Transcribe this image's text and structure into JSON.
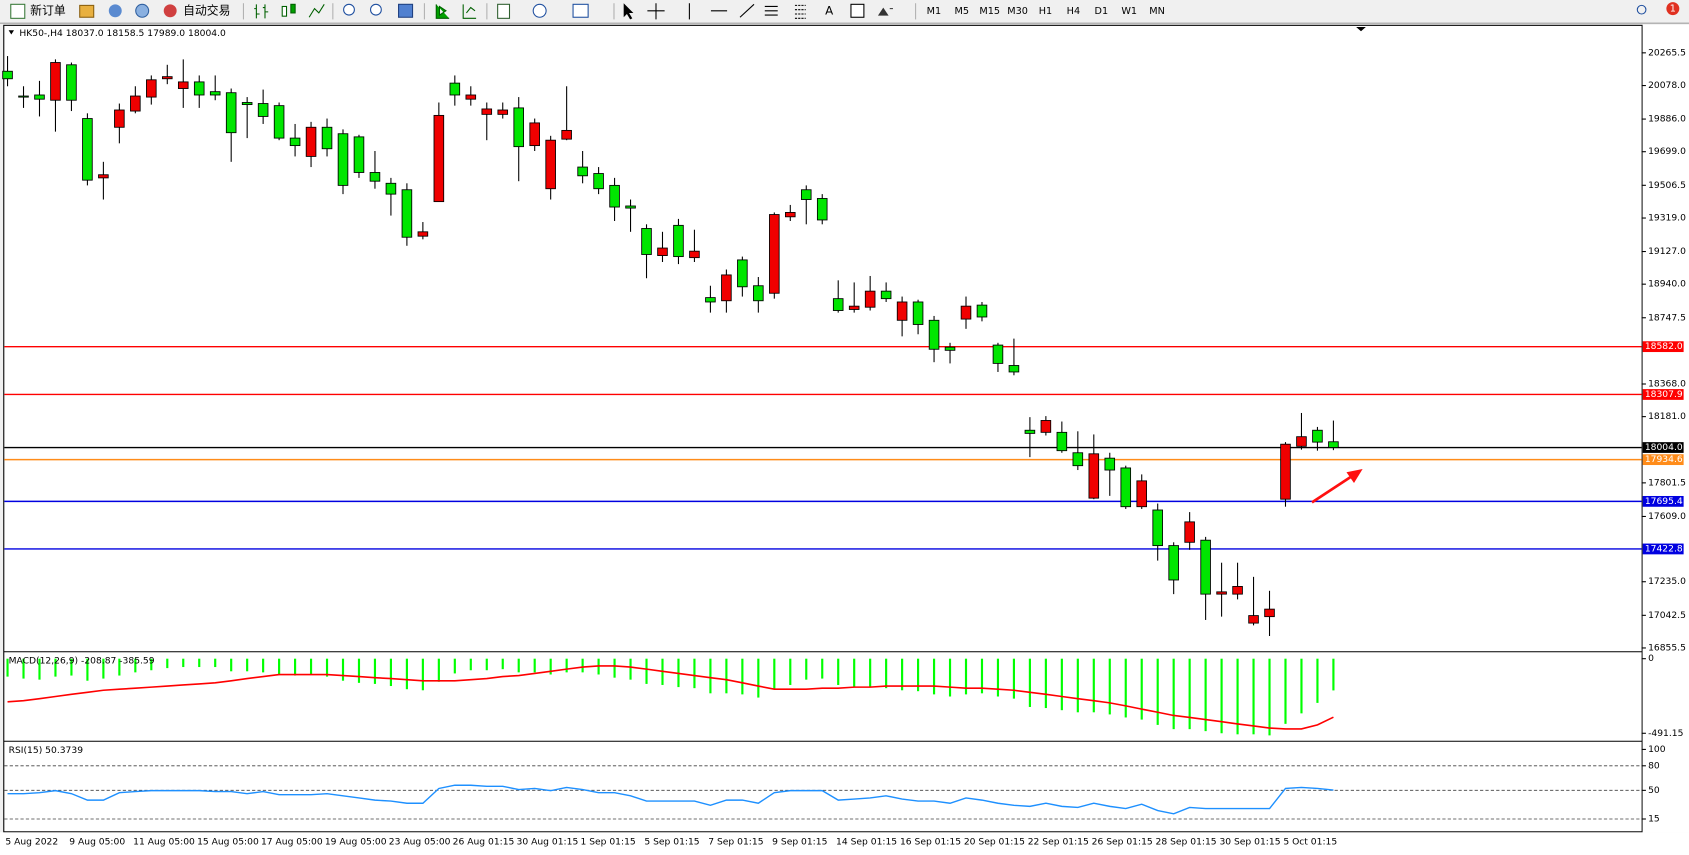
{
  "toolbar": {
    "new_order": "新订单",
    "auto_trading": "自动交易",
    "text_tool": "A",
    "timeframes": [
      "M1",
      "M5",
      "M15",
      "M30",
      "H1",
      "H4",
      "D1",
      "W1",
      "MN"
    ],
    "badge": 1
  },
  "chart_data": [
    {
      "type": "candlestick",
      "title": "HK50-,H4  18037.0 18158.5 17989.0 18004.0",
      "categories": [
        "5 Aug 2022",
        null,
        null,
        null,
        "9 Aug 05:00",
        null,
        null,
        null,
        "11 Aug 05:00",
        null,
        null,
        null,
        "15 Aug 05:00",
        null,
        null,
        null,
        "17 Aug 05:00",
        null,
        null,
        null,
        "19 Aug 05:00",
        null,
        null,
        null,
        "23 Aug 05:00",
        null,
        null,
        null,
        "26 Aug 01:15",
        null,
        null,
        null,
        "30 Aug 01:15",
        null,
        null,
        null,
        "1 Sep 01:15",
        null,
        null,
        null,
        "5 Sep 01:15",
        null,
        null,
        null,
        "7 Sep 01:15",
        null,
        null,
        null,
        "9 Sep 01:15",
        null,
        null,
        null,
        "14 Sep 01:15",
        null,
        null,
        null,
        "16 Sep 01:15",
        null,
        null,
        null,
        "20 Sep 01:15",
        null,
        null,
        null,
        "22 Sep 01:15",
        null,
        null,
        null,
        "26 Sep 01:15",
        null,
        null,
        null,
        "28 Sep 01:15",
        null,
        null,
        null,
        "30 Sep 01:15",
        null,
        null,
        null,
        "5 Oct 01:15",
        null,
        null,
        null
      ],
      "open": [
        20160,
        20018,
        20024,
        19994,
        20197,
        19889,
        19549,
        19839,
        19932,
        20012,
        20117,
        20061,
        20099,
        20043,
        20037,
        19981,
        19975,
        19963,
        19777,
        19672,
        19839,
        19802,
        19784,
        19580,
        19518,
        19481,
        19215,
        19413,
        20092,
        20000,
        19913,
        19913,
        19950,
        19734,
        19487,
        19771,
        19611,
        19574,
        19506,
        19388,
        19259,
        19104,
        19277,
        19092,
        18863,
        18845,
        19079,
        18931,
        18888,
        19326,
        19481,
        19431,
        18857,
        18795,
        18808,
        18900,
        18733,
        18838,
        18733,
        18579,
        18740,
        18820,
        18591,
        18474,
        18103,
        18091,
        18091,
        17974,
        17714,
        17943,
        17887,
        17665,
        17646,
        17442,
        17461,
        17473,
        17164,
        17164,
        16998,
        17035,
        17708,
        18011,
        18103,
        18037
      ],
      "high": [
        20247,
        20074,
        20105,
        20228,
        20210,
        19919,
        19641,
        19975,
        20074,
        20136,
        20197,
        20228,
        20136,
        20136,
        20061,
        20012,
        20055,
        19981,
        19858,
        19870,
        19889,
        19827,
        19796,
        19703,
        19549,
        19518,
        19296,
        19981,
        20136,
        20074,
        19981,
        19981,
        20012,
        19889,
        19790,
        20074,
        19703,
        19611,
        19549,
        19425,
        19283,
        19240,
        19314,
        19252,
        18931,
        19024,
        19098,
        18981,
        19351,
        19394,
        19506,
        19456,
        18962,
        18950,
        18987,
        18950,
        18869,
        18851,
        18758,
        18604,
        18869,
        18838,
        18604,
        18628,
        18178,
        18184,
        18153,
        18097,
        18079,
        17974,
        17900,
        17850,
        17683,
        17461,
        17634,
        17492,
        17344,
        17344,
        17263,
        17183,
        18035,
        18202,
        18122,
        18158.5
      ],
      "low": [
        20074,
        19950,
        19901,
        19814,
        19932,
        19506,
        19425,
        19747,
        19919,
        19969,
        20086,
        19950,
        19950,
        19994,
        19641,
        19777,
        19858,
        19765,
        19672,
        19611,
        19672,
        19456,
        19549,
        19487,
        19333,
        19160,
        19197,
        19413,
        19963,
        19963,
        19765,
        19889,
        19530,
        19703,
        19425,
        19765,
        19518,
        19456,
        19302,
        19240,
        18974,
        19067,
        19055,
        19067,
        18777,
        18777,
        18869,
        18777,
        18857,
        19302,
        19283,
        19283,
        18777,
        18777,
        18789,
        18838,
        18641,
        18653,
        18493,
        18486,
        18684,
        18727,
        18437,
        18418,
        17949,
        18073,
        17974,
        17875,
        17708,
        17727,
        17652,
        17652,
        17356,
        17164,
        17418,
        17016,
        17035,
        17134,
        16985,
        16924,
        17665,
        17992,
        17986,
        17989
      ],
      "close": [
        20117,
        20012,
        20000,
        20210,
        19994,
        19536,
        19567,
        19938,
        20018,
        20111,
        20129,
        20099,
        20024,
        20024,
        19808,
        19969,
        19901,
        19777,
        19734,
        19839,
        19716,
        19506,
        19580,
        19530,
        19456,
        19209,
        19240,
        19907,
        20024,
        20024,
        19944,
        19938,
        19728,
        19864,
        19765,
        19821,
        19561,
        19487,
        19382,
        19376,
        19110,
        19147,
        19098,
        19129,
        18838,
        18993,
        18925,
        18845,
        19339,
        19351,
        19425,
        19308,
        18789,
        18814,
        18900,
        18857,
        18838,
        18709,
        18567,
        18561,
        18814,
        18752,
        18486,
        18437,
        18085,
        18159,
        17986,
        17900,
        17968,
        17875,
        17665,
        17813,
        17442,
        17245,
        17578,
        17164,
        17177,
        17208,
        17041,
        17078,
        18023,
        18066,
        18035,
        18004
      ],
      "up_color": "#f00000",
      "down_color": "#00e600",
      "ylim": [
        16843,
        20420
      ],
      "yticks": [
        20265.5,
        {
          "value": 20078,
          "label": "20078.0"
        },
        {
          "value": 19886,
          "label": "19886.0"
        },
        {
          "value": 19699,
          "label": "19699.0"
        },
        19506.5,
        {
          "value": 19319,
          "label": "19319.0"
        },
        {
          "value": 19127,
          "label": "19127.0"
        },
        {
          "value": 18940,
          "label": "18940.0"
        },
        18747.5,
        {
          "value": 18368,
          "label": "18368.0"
        },
        {
          "value": 18181,
          "label": "18181.0"
        },
        17801.5,
        {
          "value": 17609,
          "label": "17609.0"
        },
        {
          "value": 17235,
          "label": "17235.0"
        },
        17042.5,
        16855.5
      ],
      "lines": [
        {
          "value": 18582,
          "label": "18582.0",
          "color": "#ff0000"
        },
        {
          "value": 18307.9,
          "color": "#ff0000"
        },
        {
          "value": 18004,
          "label": "18004.0",
          "color": "#000000"
        },
        {
          "value": 17934.6,
          "color": "#ff8c1a"
        },
        {
          "value": 17695.4,
          "color": "#0000e0"
        },
        {
          "value": 17422.8,
          "color": "#0000e0"
        }
      ]
    },
    {
      "type": "macd",
      "title": "MACD(12,26,9) -208.87 -385.59",
      "series": [
        {
          "color": "#00ff00",
          "values": [
            -118,
            -131,
            -138,
            -118,
            -111,
            -145,
            -131,
            -111,
            -90,
            -76,
            -62,
            -55,
            -55,
            -55,
            -83,
            -83,
            -90,
            -104,
            -111,
            -104,
            -118,
            -145,
            -159,
            -166,
            -180,
            -201,
            -208,
            -152,
            -97,
            -76,
            -76,
            -69,
            -90,
            -90,
            -104,
            -90,
            -90,
            -104,
            -125,
            -138,
            -166,
            -173,
            -187,
            -194,
            -228,
            -228,
            -235,
            -256,
            -201,
            -173,
            -138,
            -131,
            -173,
            -187,
            -187,
            -194,
            -208,
            -214,
            -235,
            -249,
            -235,
            -228,
            -249,
            -263,
            -318,
            -325,
            -339,
            -353,
            -353,
            -367,
            -387,
            -401,
            -436,
            -464,
            -464,
            -477,
            -491,
            -498,
            -498,
            -505,
            -429,
            -360,
            -291,
            -208.87
          ]
        },
        {
          "color": "#ff0000",
          "values": [
            -284,
            -277,
            -263,
            -249,
            -235,
            -221,
            -208,
            -201,
            -194,
            -187,
            -180,
            -173,
            -166,
            -159,
            -145,
            -131,
            -118,
            -104,
            -104,
            -104,
            -104,
            -111,
            -118,
            -125,
            -131,
            -138,
            -145,
            -145,
            -145,
            -138,
            -131,
            -118,
            -111,
            -97,
            -83,
            -69,
            -55,
            -48,
            -48,
            -55,
            -69,
            -83,
            -97,
            -111,
            -125,
            -138,
            -159,
            -180,
            -201,
            -201,
            -201,
            -194,
            -194,
            -187,
            -187,
            -180,
            -180,
            -180,
            -180,
            -187,
            -194,
            -194,
            -201,
            -208,
            -221,
            -235,
            -249,
            -263,
            -277,
            -291,
            -311,
            -332,
            -353,
            -374,
            -387,
            -401,
            -415,
            -429,
            -443,
            -457,
            -463,
            -463,
            -436,
            -385.59
          ]
        }
      ],
      "ylim": [
        -533,
        35
      ],
      "yticks": [
        0,
        -491.15
      ]
    },
    {
      "type": "line",
      "title": "RSI(15) 50.3739",
      "series": [
        {
          "color": "#1e90ff",
          "values": [
            45.9,
            45.9,
            47.2,
            49.7,
            45.9,
            38.1,
            38.1,
            47.2,
            48.5,
            49.7,
            49.7,
            49.7,
            49.7,
            48.5,
            48.5,
            45.9,
            48.5,
            44.6,
            44.6,
            44.6,
            45.9,
            43.3,
            40.7,
            38.1,
            36.9,
            34.3,
            34.3,
            52.3,
            56.2,
            56.2,
            54.9,
            54.9,
            51.0,
            52.3,
            49.7,
            53.6,
            51.0,
            47.2,
            47.2,
            43.3,
            36.9,
            36.9,
            36.9,
            36.9,
            31.7,
            38.1,
            38.1,
            34.3,
            47.2,
            49.7,
            49.7,
            49.7,
            38.1,
            39.4,
            40.7,
            43.3,
            39.4,
            36.9,
            36.9,
            34.3,
            40.7,
            38.1,
            34.3,
            31.7,
            30.4,
            34.3,
            30.4,
            29.1,
            34.3,
            30.4,
            27.8,
            33.0,
            25.3,
            21.4,
            29.1,
            27.8,
            27.8,
            27.8,
            27.8,
            27.8,
            52.3,
            53.6,
            52.3,
            50.3739
          ]
        }
      ],
      "ylim": [
        0,
        108
      ],
      "yticks": [
        100,
        80,
        50,
        15
      ],
      "levels": [
        80,
        50,
        15
      ]
    }
  ]
}
